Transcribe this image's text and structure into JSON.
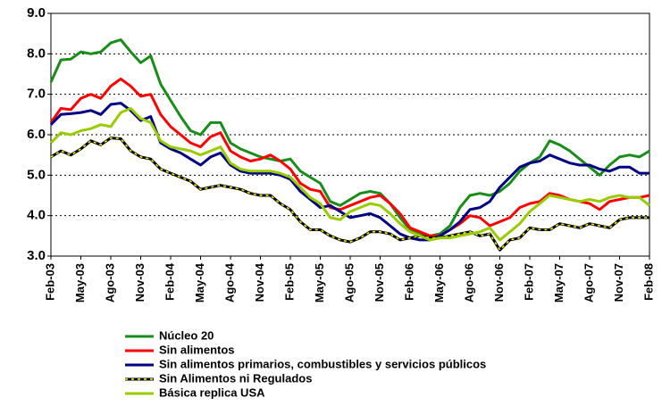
{
  "chart_data": {
    "type": "line",
    "categories": [
      "Feb-03",
      null,
      null,
      "May-03",
      null,
      null,
      "Ago-03",
      null,
      null,
      "Nov-03",
      null,
      null,
      "Feb-04",
      null,
      null,
      "May-04",
      null,
      null,
      "Ago-04",
      null,
      null,
      "Nov-04",
      null,
      null,
      "Feb-05",
      null,
      null,
      "May-05",
      null,
      null,
      "Ago-05",
      null,
      null,
      "Nov-05",
      null,
      null,
      "Feb-06",
      null,
      null,
      "May-06",
      null,
      null,
      "Ago-06",
      null,
      null,
      "Nov-06",
      null,
      null,
      "Feb-07",
      null,
      null,
      "May-07",
      null,
      null,
      "Ago-07",
      null,
      null,
      "Nov-07",
      null,
      null,
      "Feb-08"
    ],
    "series": [
      {
        "name": "Núcleo 20",
        "color": "#1a8c1a",
        "values": [
          7.3,
          7.85,
          7.87,
          8.05,
          8.0,
          8.05,
          8.27,
          8.35,
          8.05,
          7.78,
          7.95,
          7.25,
          6.85,
          6.45,
          6.1,
          6.0,
          6.3,
          6.3,
          5.8,
          5.65,
          5.55,
          5.45,
          5.4,
          5.35,
          5.4,
          5.1,
          4.95,
          4.8,
          4.35,
          4.25,
          4.4,
          4.55,
          4.6,
          4.55,
          4.3,
          3.95,
          3.65,
          3.55,
          3.5,
          3.55,
          3.75,
          4.2,
          4.5,
          4.55,
          4.5,
          4.6,
          4.8,
          5.1,
          5.3,
          5.45,
          5.85,
          5.75,
          5.6,
          5.4,
          5.2,
          5.0,
          5.25,
          5.45,
          5.5,
          5.45,
          5.6
        ]
      },
      {
        "name": "Sin alimentos",
        "color": "#ff0000",
        "values": [
          6.3,
          6.65,
          6.62,
          6.9,
          7.0,
          6.9,
          7.2,
          7.38,
          7.2,
          6.95,
          7.0,
          6.5,
          6.2,
          6.0,
          5.8,
          5.7,
          5.95,
          6.05,
          5.6,
          5.45,
          5.35,
          5.4,
          5.5,
          5.35,
          5.15,
          4.8,
          4.65,
          4.6,
          4.2,
          4.15,
          4.25,
          4.35,
          4.45,
          4.5,
          4.3,
          4.05,
          3.7,
          3.6,
          3.5,
          3.5,
          3.65,
          3.8,
          4.0,
          3.95,
          3.75,
          3.85,
          3.95,
          4.2,
          4.3,
          4.35,
          4.55,
          4.5,
          4.4,
          4.35,
          4.3,
          4.15,
          4.35,
          4.4,
          4.45,
          4.45,
          4.5
        ]
      },
      {
        "name": "Sin alimentos primarios, combustibles y servicios públicos",
        "color": "#000080",
        "values": [
          6.25,
          6.5,
          6.52,
          6.55,
          6.6,
          6.5,
          6.75,
          6.78,
          6.6,
          6.35,
          6.45,
          5.8,
          5.65,
          5.55,
          5.4,
          5.25,
          5.45,
          5.55,
          5.25,
          5.1,
          5.05,
          5.05,
          5.05,
          5.0,
          4.9,
          4.6,
          4.4,
          4.2,
          4.25,
          4.1,
          3.95,
          4.0,
          4.05,
          3.95,
          3.75,
          3.55,
          3.45,
          3.4,
          3.4,
          3.5,
          3.65,
          3.85,
          4.15,
          4.2,
          4.35,
          4.7,
          4.95,
          5.2,
          5.3,
          5.35,
          5.5,
          5.4,
          5.3,
          5.25,
          5.25,
          5.15,
          5.1,
          5.2,
          5.2,
          5.05,
          5.05
        ]
      },
      {
        "name": "Sin Alimentos ni Regulados",
        "color": "#000000",
        "dash_color": "#ffff00",
        "values": [
          5.45,
          5.6,
          5.5,
          5.65,
          5.85,
          5.75,
          5.92,
          5.9,
          5.6,
          5.45,
          5.4,
          5.15,
          5.05,
          4.95,
          4.85,
          4.65,
          4.7,
          4.75,
          4.7,
          4.65,
          4.55,
          4.5,
          4.5,
          4.3,
          4.15,
          3.85,
          3.65,
          3.65,
          3.5,
          3.4,
          3.35,
          3.45,
          3.6,
          3.6,
          3.55,
          3.4,
          3.45,
          3.5,
          3.45,
          3.45,
          3.5,
          3.55,
          3.6,
          3.5,
          3.55,
          3.15,
          3.4,
          3.45,
          3.7,
          3.65,
          3.65,
          3.8,
          3.75,
          3.7,
          3.8,
          3.75,
          3.7,
          3.9,
          3.95,
          3.95,
          3.95
        ]
      },
      {
        "name": "Básica replica USA",
        "color": "#99cc00",
        "values": [
          5.8,
          6.05,
          6.0,
          6.1,
          6.15,
          6.25,
          6.2,
          6.55,
          6.65,
          6.4,
          6.3,
          5.85,
          5.7,
          5.65,
          5.6,
          5.5,
          5.6,
          5.7,
          5.3,
          5.15,
          5.1,
          5.1,
          5.1,
          5.05,
          4.95,
          4.7,
          4.45,
          4.3,
          3.95,
          3.9,
          4.1,
          4.2,
          4.3,
          4.25,
          4.05,
          3.8,
          3.6,
          3.5,
          3.4,
          3.45,
          3.45,
          3.5,
          3.55,
          3.6,
          3.7,
          3.4,
          3.6,
          3.8,
          4.1,
          4.3,
          4.5,
          4.45,
          4.4,
          4.35,
          4.4,
          4.35,
          4.45,
          4.5,
          4.45,
          4.45,
          4.25
        ]
      }
    ],
    "ylim": [
      3,
      9
    ],
    "yticks": [
      {
        "value": 3,
        "label": "3.0"
      },
      {
        "value": 4,
        "label": "4.0"
      },
      {
        "value": 5,
        "label": "5.0"
      },
      {
        "value": 6,
        "label": "6.0"
      },
      {
        "value": 7,
        "label": "7.0"
      },
      {
        "value": 8,
        "label": "8.0"
      },
      {
        "value": 9,
        "label": "9.0"
      }
    ],
    "grid": true
  }
}
